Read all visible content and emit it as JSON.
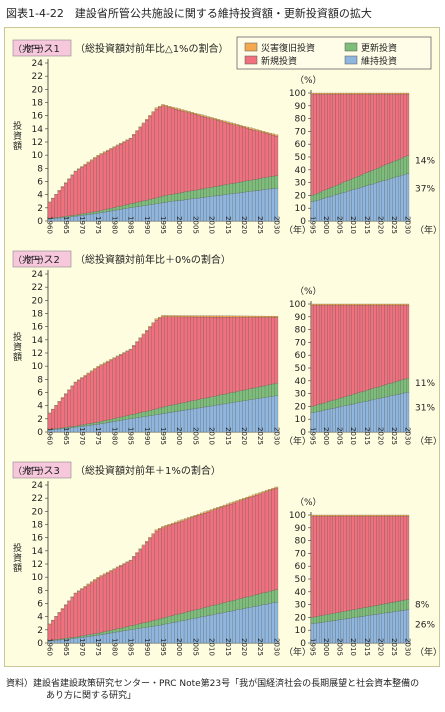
{
  "figure": {
    "title": "図表1-4-22　建設省所管公共施設に関する維持投資額・更新投資額の拡大",
    "source_line1": "資料）建設省建設政策研究センター・PRC Note第23号「我が国経済社会の長期展望と社会資本整備の",
    "source_line2": "あり方に関する研究」"
  },
  "legend": {
    "items": [
      {
        "label": "災害復旧投資",
        "color": "#f5a94e"
      },
      {
        "label": "更新投資",
        "color": "#7dbe7a"
      },
      {
        "label": "新規投資",
        "color": "#f0707e"
      },
      {
        "label": "維持投資",
        "color": "#8fb6de"
      }
    ]
  },
  "colors": {
    "maint": "#8fb6de",
    "renew": "#7dbe7a",
    "new": "#f0707e",
    "disaster": "#f5a94e"
  },
  "chart_data": [
    {
      "type": "bar",
      "stacked": true,
      "case_label": "ケース1",
      "case_note": "（総投資額対前年比△1%の割合）",
      "ylabel": "投資額",
      "yunit": "（兆円）",
      "ylim": [
        0,
        24
      ],
      "xlabel": "（年）",
      "years": [
        1960,
        2030
      ],
      "breakpoints": [
        {
          "year": 1960,
          "maint": 0.3,
          "renew": 0.1,
          "new": 2.4,
          "disaster": 0.1
        },
        {
          "year": 1968,
          "maint": 0.7,
          "renew": 0.2,
          "new": 6.6,
          "disaster": 0.1
        },
        {
          "year": 1975,
          "maint": 1.2,
          "renew": 0.3,
          "new": 8.3,
          "disaster": 0.2
        },
        {
          "year": 1985,
          "maint": 2.0,
          "renew": 0.6,
          "new": 9.9,
          "disaster": 0.1
        },
        {
          "year": 1993,
          "maint": 2.6,
          "renew": 0.9,
          "new": 13.5,
          "disaster": 0.2
        },
        {
          "year": 1995,
          "maint": 2.8,
          "renew": 1.0,
          "new": 13.7,
          "disaster": 0.2
        },
        {
          "year": 2030,
          "maint": 5.0,
          "renew": 1.9,
          "new": 6.0,
          "disaster": 0.2
        }
      ],
      "share": {
        "ylim": [
          0,
          100
        ],
        "yunit": "（%）",
        "breakpoints": [
          {
            "year": 1995,
            "maint": 15,
            "renew": 5
          },
          {
            "year": 2030,
            "maint": 37,
            "renew": 14
          }
        ],
        "end_labels": {
          "renew": "14%",
          "maint": "37%"
        }
      }
    },
    {
      "type": "bar",
      "stacked": true,
      "case_label": "ケース2",
      "case_note": "（総投資額対前年比＋0%の割合）",
      "ylabel": "投資額",
      "yunit": "（兆円）",
      "ylim": [
        0,
        24
      ],
      "xlabel": "（年）",
      "years": [
        1960,
        2030
      ],
      "breakpoints": [
        {
          "year": 1960,
          "maint": 0.3,
          "renew": 0.1,
          "new": 2.4,
          "disaster": 0.1
        },
        {
          "year": 1968,
          "maint": 0.7,
          "renew": 0.2,
          "new": 6.6,
          "disaster": 0.1
        },
        {
          "year": 1975,
          "maint": 1.2,
          "renew": 0.3,
          "new": 8.3,
          "disaster": 0.2
        },
        {
          "year": 1985,
          "maint": 2.0,
          "renew": 0.6,
          "new": 9.9,
          "disaster": 0.1
        },
        {
          "year": 1993,
          "maint": 2.6,
          "renew": 0.9,
          "new": 13.5,
          "disaster": 0.2
        },
        {
          "year": 1995,
          "maint": 2.8,
          "renew": 1.0,
          "new": 13.7,
          "disaster": 0.2
        },
        {
          "year": 2030,
          "maint": 5.5,
          "renew": 1.9,
          "new": 10.0,
          "disaster": 0.2
        }
      ],
      "share": {
        "ylim": [
          0,
          100
        ],
        "yunit": "（%）",
        "breakpoints": [
          {
            "year": 1995,
            "maint": 15,
            "renew": 5
          },
          {
            "year": 2030,
            "maint": 31,
            "renew": 11
          }
        ],
        "end_labels": {
          "renew": "11%",
          "maint": "31%"
        }
      }
    },
    {
      "type": "bar",
      "stacked": true,
      "case_label": "ケース3",
      "case_note": "（総投資額対前年＋1%の割合）",
      "ylabel": "投資額",
      "yunit": "（兆円）",
      "ylim": [
        0,
        24
      ],
      "xlabel": "（年）",
      "years": [
        1960,
        2030
      ],
      "breakpoints": [
        {
          "year": 1960,
          "maint": 0.3,
          "renew": 0.1,
          "new": 2.4,
          "disaster": 0.1
        },
        {
          "year": 1968,
          "maint": 0.7,
          "renew": 0.2,
          "new": 6.6,
          "disaster": 0.1
        },
        {
          "year": 1975,
          "maint": 1.2,
          "renew": 0.3,
          "new": 8.3,
          "disaster": 0.2
        },
        {
          "year": 1985,
          "maint": 2.0,
          "renew": 0.6,
          "new": 9.9,
          "disaster": 0.1
        },
        {
          "year": 1993,
          "maint": 2.6,
          "renew": 0.9,
          "new": 13.5,
          "disaster": 0.2
        },
        {
          "year": 1995,
          "maint": 2.8,
          "renew": 1.0,
          "new": 13.7,
          "disaster": 0.2
        },
        {
          "year": 2030,
          "maint": 6.2,
          "renew": 1.9,
          "new": 15.4,
          "disaster": 0.2
        }
      ],
      "share": {
        "ylim": [
          0,
          100
        ],
        "yunit": "（%）",
        "breakpoints": [
          {
            "year": 1995,
            "maint": 15,
            "renew": 5
          },
          {
            "year": 2030,
            "maint": 26,
            "renew": 8
          }
        ],
        "end_labels": {
          "renew": "8%",
          "maint": "26%"
        }
      }
    }
  ]
}
